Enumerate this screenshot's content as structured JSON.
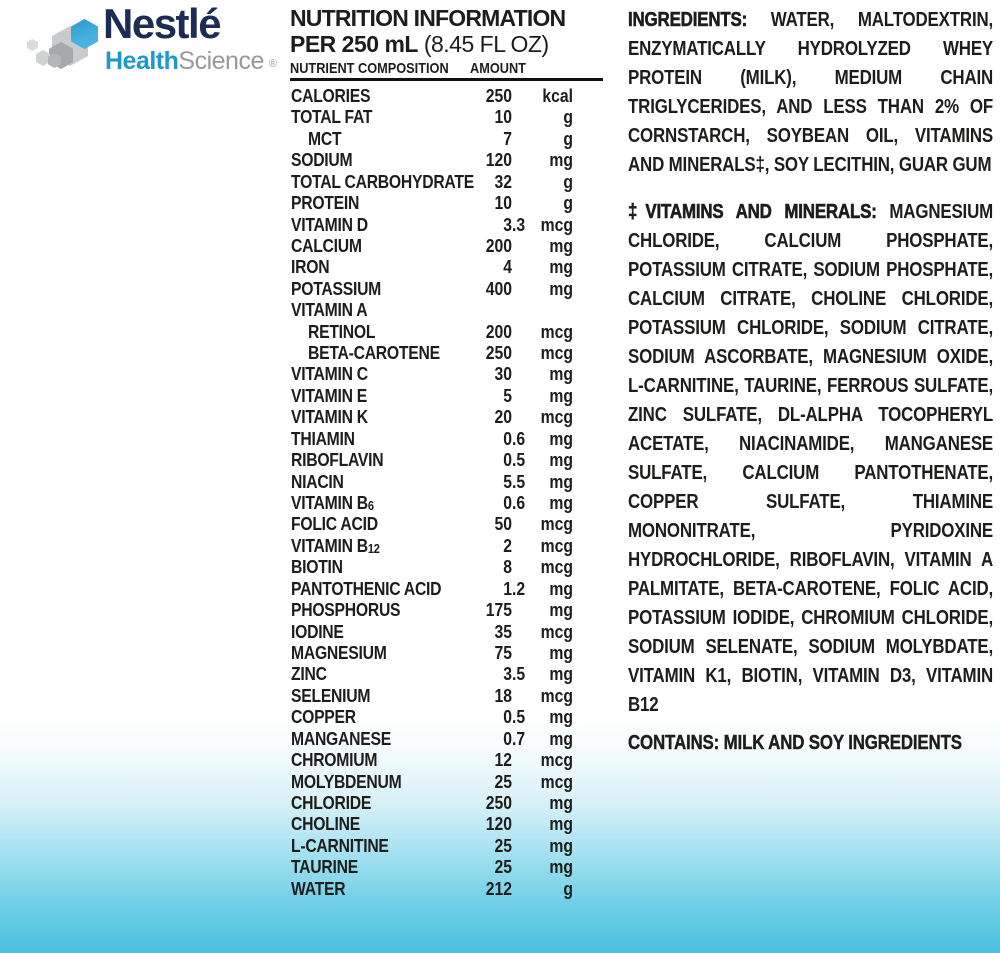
{
  "logo": {
    "brand": "Nestlé",
    "sub_bold": "Health",
    "sub_light": "Science",
    "registered": "®",
    "colors": {
      "navy": "#1c2c55",
      "health_blue": "#1e97cf",
      "science_gray": "#97999b",
      "hex_blue": "#3fa9da",
      "hex_gray": "#c9cbcd"
    }
  },
  "nutrition": {
    "title": "NUTRITION INFORMATION",
    "serving_bold": "PER 250 mL",
    "serving_light": " (8.45 FL OZ)",
    "col_nutrient": "NUTRIENT COMPOSITION",
    "col_amount": "AMOUNT",
    "rows": [
      {
        "label": "CALORIES",
        "int": "250",
        "dec": "",
        "unit": "kcal",
        "indent": false
      },
      {
        "label": "TOTAL FAT",
        "int": "10",
        "dec": "",
        "unit": "g",
        "indent": false
      },
      {
        "label": "MCT",
        "int": "7",
        "dec": "",
        "unit": "g",
        "indent": true
      },
      {
        "label": "SODIUM",
        "int": "120",
        "dec": "",
        "unit": "mg",
        "indent": false
      },
      {
        "label": "TOTAL CARBOHYDRATE",
        "int": "32",
        "dec": "",
        "unit": "g",
        "indent": false
      },
      {
        "label": "PROTEIN",
        "int": "10",
        "dec": "",
        "unit": "g",
        "indent": false
      },
      {
        "label": "VITAMIN D",
        "int": "3",
        "dec": ".3",
        "unit": "mcg",
        "indent": false
      },
      {
        "label": "CALCIUM",
        "int": "200",
        "dec": "",
        "unit": "mg",
        "indent": false
      },
      {
        "label": "IRON",
        "int": "4",
        "dec": "",
        "unit": "mg",
        "indent": false
      },
      {
        "label": "POTASSIUM",
        "int": "400",
        "dec": "",
        "unit": "mg",
        "indent": false
      },
      {
        "label": "VITAMIN A",
        "int": "",
        "dec": "",
        "unit": "",
        "indent": false
      },
      {
        "label": "RETINOL",
        "int": "200",
        "dec": "",
        "unit": "mcg",
        "indent": true
      },
      {
        "label": "BETA-CAROTENE",
        "int": "250",
        "dec": "",
        "unit": "mcg",
        "indent": true
      },
      {
        "label": "VITAMIN C",
        "int": "30",
        "dec": "",
        "unit": "mg",
        "indent": false
      },
      {
        "label": "VITAMIN E",
        "int": "5",
        "dec": "",
        "unit": "mg",
        "indent": false
      },
      {
        "label": "VITAMIN K",
        "int": "20",
        "dec": "",
        "unit": "mcg",
        "indent": false
      },
      {
        "label": "THIAMIN",
        "int": "0",
        "dec": ".6",
        "unit": "mg",
        "indent": false
      },
      {
        "label": "RIBOFLAVIN",
        "int": "0",
        "dec": ".5",
        "unit": "mg",
        "indent": false
      },
      {
        "label": "NIACIN",
        "int": "5",
        "dec": ".5",
        "unit": "mg",
        "indent": false
      },
      {
        "label": "VITAMIN B",
        "sub": "6",
        "int": "0",
        "dec": ".6",
        "unit": "mg",
        "indent": false
      },
      {
        "label": "FOLIC ACID",
        "int": "50",
        "dec": "",
        "unit": "mcg",
        "indent": false
      },
      {
        "label": "VITAMIN B",
        "sub": "12",
        "int": "2",
        "dec": "",
        "unit": "mcg",
        "indent": false
      },
      {
        "label": "BIOTIN",
        "int": "8",
        "dec": "",
        "unit": "mcg",
        "indent": false
      },
      {
        "label": "PANTOTHENIC ACID",
        "int": "1",
        "dec": ".2",
        "unit": "mg",
        "indent": false
      },
      {
        "label": "PHOSPHORUS",
        "int": "175",
        "dec": "",
        "unit": "mg",
        "indent": false
      },
      {
        "label": "IODINE",
        "int": "35",
        "dec": "",
        "unit": "mcg",
        "indent": false
      },
      {
        "label": "MAGNESIUM",
        "int": "75",
        "dec": "",
        "unit": "mg",
        "indent": false
      },
      {
        "label": "ZINC",
        "int": "3",
        "dec": ".5",
        "unit": "mg",
        "indent": false
      },
      {
        "label": "SELENIUM",
        "int": "18",
        "dec": "",
        "unit": "mcg",
        "indent": false
      },
      {
        "label": "COPPER",
        "int": "0",
        "dec": ".5",
        "unit": "mg",
        "indent": false
      },
      {
        "label": "MANGANESE",
        "int": "0",
        "dec": ".7",
        "unit": "mg",
        "indent": false
      },
      {
        "label": "CHROMIUM",
        "int": "12",
        "dec": "",
        "unit": "mcg",
        "indent": false
      },
      {
        "label": "MOLYBDENUM",
        "int": "25",
        "dec": "",
        "unit": "mcg",
        "indent": false
      },
      {
        "label": "CHLORIDE",
        "int": "250",
        "dec": "",
        "unit": "mg",
        "indent": false
      },
      {
        "label": "CHOLINE",
        "int": "120",
        "dec": "",
        "unit": "mg",
        "indent": false
      },
      {
        "label": "L-CARNITINE",
        "int": "25",
        "dec": "",
        "unit": "mg",
        "indent": false
      },
      {
        "label": "TAURINE",
        "int": "25",
        "dec": "",
        "unit": "mg",
        "indent": false
      },
      {
        "label": "WATER",
        "int": "212",
        "dec": "",
        "unit": "g",
        "indent": false
      }
    ]
  },
  "ingredients": {
    "lead1": "INGREDIENTS:",
    "body1": " WATER, MALTODEXTRIN, ENZYMATICALLY HYDROLYZED WHEY PROTEIN (MILK), MEDIUM CHAIN TRIGLYCERIDES, AND LESS THAN 2% OF CORNSTARCH, SOYBEAN OIL, VITAMINS AND MINERALS‡, SOY LECITHIN, GUAR GUM",
    "lead2": "‡VITAMINS AND MINERALS:",
    "body2": "  MAGNESIUM CHLORIDE, CALCIUM PHOSPHATE, POTASSIUM CITRATE, SODIUM PHOSPHATE, CALCIUM CITRATE, CHOLINE CHLORIDE, POTASSIUM CHLORIDE, SODIUM CITRATE, SODIUM ASCORBATE, MAGNESIUM OXIDE, L-CARNITINE, TAURINE, FERROUS SULFATE, ZINC SULFATE, DL-ALPHA TOCOPHERYL ACETATE, NIACINAMIDE, MANGANESE SULFATE, CALCIUM PANTOTHENATE, COPPER SULFATE, THIAMINE MONONITRATE, PYRIDOXINE HYDROCHLORIDE, RIBOFLAVIN, VITAMIN A PALMITATE, BETA-CAROTENE, FOLIC ACID, POTASSIUM IODIDE, CHROMIUM CHLORIDE, SODIUM SELENATE, SODIUM MOLYBDATE, VITAMIN K1, BIOTIN, VITAMIN D3, VITAMIN B12",
    "contains": "CONTAINS: MILK AND SOY INGREDIENTS"
  },
  "colors": {
    "text": "#1d1d1b",
    "background_top": "#ffffff",
    "background_bottom": "#48c0df"
  }
}
